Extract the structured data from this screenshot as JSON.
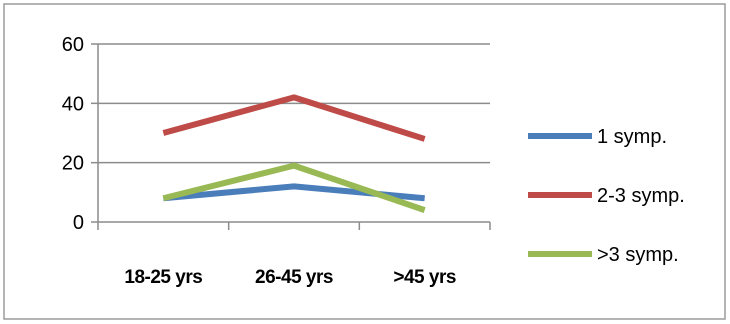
{
  "chart_data": {
    "type": "line",
    "title": "",
    "xlabel": "",
    "ylabel": "",
    "categories": [
      "18-25 yrs",
      "26-45 yrs",
      ">45 yrs"
    ],
    "ylim": [
      0,
      60
    ],
    "yticks": [
      0,
      20,
      40,
      60
    ],
    "grid": "horizontal",
    "legend_position": "right",
    "series": [
      {
        "name": "1 symp.",
        "color": "#4a7ebb",
        "values": [
          8,
          12,
          8
        ]
      },
      {
        "name": "2-3 symp.",
        "color": "#be4b48",
        "values": [
          30,
          42,
          28
        ]
      },
      {
        "name": ">3 symp.",
        "color": "#98b954",
        "values": [
          8,
          19,
          4
        ]
      }
    ]
  }
}
